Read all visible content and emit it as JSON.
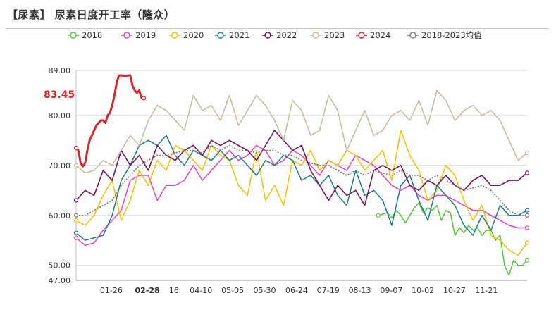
{
  "title": "【尿素】 尿素日度开工率（隆众）",
  "chart_data": {
    "type": "line",
    "title": "【尿素】 尿素日度开工率（隆众）",
    "xlabel": "",
    "ylabel": "",
    "ylim": [
      47,
      89
    ],
    "yticks": [
      "89.00",
      "80.00",
      "70.00",
      "60.00",
      "50.00",
      "47.00"
    ],
    "ytick_values": [
      89,
      80,
      70,
      60,
      50,
      47
    ],
    "xlim": [
      0,
      1
    ],
    "xticks": [
      {
        "label": "01-26",
        "pos": 0.078,
        "highlight": false
      },
      {
        "label": "02-28",
        "pos": 0.158,
        "highlight": true
      },
      {
        "label": "16",
        "pos": 0.217,
        "highlight": false
      },
      {
        "label": "04-10",
        "pos": 0.277,
        "highlight": false
      },
      {
        "label": "05-05",
        "pos": 0.347,
        "highlight": false
      },
      {
        "label": "05-30",
        "pos": 0.418,
        "highlight": false
      },
      {
        "label": "06-24",
        "pos": 0.489,
        "highlight": false
      },
      {
        "label": "07-19",
        "pos": 0.559,
        "highlight": false
      },
      {
        "label": "08-13",
        "pos": 0.629,
        "highlight": false
      },
      {
        "label": "09-07",
        "pos": 0.699,
        "highlight": false
      },
      {
        "label": "10-02",
        "pos": 0.769,
        "highlight": false
      },
      {
        "label": "10-27",
        "pos": 0.839,
        "highlight": false
      },
      {
        "label": "11-21",
        "pos": 0.91,
        "highlight": false
      }
    ],
    "grid": true,
    "legend_position": "top",
    "annotation": {
      "text": "83.45",
      "color": "#d9262c"
    },
    "series": [
      {
        "name": "2018",
        "color": "#52c43a",
        "width": 1.5,
        "marker": "circle",
        "x": [
          0.67,
          0.69,
          0.7,
          0.71,
          0.72,
          0.73,
          0.74,
          0.75,
          0.76,
          0.77,
          0.78,
          0.79,
          0.8,
          0.81,
          0.82,
          0.83,
          0.84,
          0.85,
          0.86,
          0.87,
          0.88,
          0.89,
          0.9,
          0.91,
          0.92,
          0.93,
          0.94,
          0.95,
          0.96,
          0.97,
          0.98,
          0.99,
          1.0
        ],
        "y": [
          60,
          60.5,
          59.5,
          61,
          60,
          58.5,
          60,
          61.5,
          62.5,
          60.5,
          61.5,
          61,
          62,
          59,
          61,
          60.5,
          56,
          57.5,
          56.5,
          58,
          57,
          57.5,
          56,
          57,
          57,
          55,
          56,
          50,
          48,
          51,
          50,
          50,
          51
        ]
      },
      {
        "name": "2019",
        "color": "#e83fbf",
        "width": 1.5,
        "marker": "circle",
        "x": [
          0.0,
          0.02,
          0.04,
          0.06,
          0.08,
          0.1,
          0.12,
          0.14,
          0.16,
          0.18,
          0.2,
          0.22,
          0.24,
          0.26,
          0.28,
          0.3,
          0.32,
          0.34,
          0.36,
          0.38,
          0.4,
          0.42,
          0.44,
          0.46,
          0.48,
          0.5,
          0.52,
          0.54,
          0.56,
          0.58,
          0.6,
          0.62,
          0.64,
          0.66,
          0.68,
          0.7,
          0.72,
          0.74,
          0.76,
          0.78,
          0.8,
          0.82,
          0.84,
          0.86,
          0.88,
          0.9,
          0.92,
          0.94,
          0.96,
          0.98,
          1.0
        ],
        "y": [
          55.5,
          54,
          54.5,
          57,
          59,
          61,
          67,
          68,
          68,
          63,
          66,
          66,
          67,
          70,
          67,
          69,
          71,
          73,
          71,
          72,
          74,
          73,
          70,
          71,
          73,
          72,
          70,
          68,
          71,
          70,
          69,
          72,
          71,
          70,
          68,
          66,
          65,
          66,
          64,
          63,
          64,
          64,
          63,
          62,
          61,
          61,
          60,
          59,
          58,
          57.5,
          57.5
        ]
      },
      {
        "name": "2020",
        "color": "#f5c000",
        "width": 1.5,
        "marker": "circle",
        "x": [
          0.0,
          0.02,
          0.04,
          0.06,
          0.08,
          0.1,
          0.12,
          0.14,
          0.16,
          0.18,
          0.2,
          0.22,
          0.24,
          0.26,
          0.28,
          0.3,
          0.32,
          0.34,
          0.36,
          0.38,
          0.4,
          0.42,
          0.44,
          0.46,
          0.48,
          0.5,
          0.52,
          0.54,
          0.56,
          0.58,
          0.6,
          0.62,
          0.64,
          0.66,
          0.68,
          0.7,
          0.72,
          0.74,
          0.76,
          0.78,
          0.8,
          0.82,
          0.84,
          0.86,
          0.88,
          0.9,
          0.92,
          0.94,
          0.96,
          0.98,
          1.0
        ],
        "y": [
          59,
          58,
          60,
          64,
          67,
          59,
          63,
          69,
          66,
          71,
          69,
          74,
          73,
          71,
          69,
          74,
          72,
          71,
          66,
          64,
          73,
          63,
          66,
          62,
          71,
          70,
          73,
          69,
          71,
          70,
          73,
          72,
          69,
          71,
          73,
          67,
          77,
          72,
          69,
          63,
          65,
          70,
          68,
          63,
          59,
          62,
          56,
          55,
          53,
          52,
          54.5
        ]
      },
      {
        "name": "2021",
        "color": "#1e7a86",
        "width": 1.5,
        "marker": "circle",
        "x": [
          0.0,
          0.02,
          0.04,
          0.06,
          0.08,
          0.1,
          0.12,
          0.14,
          0.16,
          0.18,
          0.2,
          0.22,
          0.24,
          0.26,
          0.28,
          0.3,
          0.32,
          0.34,
          0.36,
          0.38,
          0.4,
          0.42,
          0.44,
          0.46,
          0.48,
          0.5,
          0.52,
          0.54,
          0.56,
          0.58,
          0.6,
          0.62,
          0.64,
          0.66,
          0.68,
          0.7,
          0.72,
          0.74,
          0.76,
          0.78,
          0.8,
          0.82,
          0.84,
          0.86,
          0.88,
          0.9,
          0.92,
          0.94,
          0.96,
          0.98,
          1.0
        ],
        "y": [
          56.5,
          55,
          55.5,
          56,
          60,
          67,
          70,
          74,
          75,
          74,
          76,
          72,
          70,
          73,
          72,
          71,
          73,
          71,
          72,
          70,
          68,
          71,
          70,
          72,
          71,
          67,
          68,
          66,
          68,
          64,
          62,
          69,
          64,
          65,
          63,
          58,
          66,
          68,
          63,
          59,
          66,
          64,
          62,
          58,
          56,
          60,
          57,
          62,
          60,
          60,
          61
        ]
      },
      {
        "name": "2022",
        "color": "#76135a",
        "width": 1.6,
        "marker": "circle",
        "x": [
          0.0,
          0.02,
          0.04,
          0.06,
          0.08,
          0.1,
          0.12,
          0.14,
          0.16,
          0.18,
          0.2,
          0.22,
          0.24,
          0.26,
          0.28,
          0.3,
          0.32,
          0.34,
          0.36,
          0.38,
          0.4,
          0.42,
          0.44,
          0.46,
          0.48,
          0.5,
          0.52,
          0.54,
          0.56,
          0.58,
          0.6,
          0.62,
          0.64,
          0.66,
          0.68,
          0.7,
          0.72,
          0.74,
          0.76,
          0.78,
          0.8,
          0.82,
          0.84,
          0.86,
          0.88,
          0.9,
          0.92,
          0.94,
          0.96,
          0.98,
          1.0
        ],
        "y": [
          63,
          65,
          64,
          69,
          67,
          73,
          70,
          72,
          69,
          74,
          72,
          71,
          73,
          74,
          72,
          75,
          74,
          75,
          74,
          73,
          71,
          74,
          77,
          75,
          73,
          74,
          69,
          66,
          63,
          66,
          64,
          65,
          62,
          69,
          70,
          69,
          70,
          66,
          65,
          67,
          66,
          68,
          66,
          65,
          67,
          68,
          66,
          66,
          67,
          67,
          68.5
        ]
      },
      {
        "name": "2023",
        "color": "#c8b8a0",
        "width": 1.5,
        "marker": "circle",
        "x": [
          0.0,
          0.02,
          0.04,
          0.06,
          0.08,
          0.1,
          0.12,
          0.14,
          0.16,
          0.18,
          0.2,
          0.22,
          0.24,
          0.26,
          0.28,
          0.3,
          0.32,
          0.34,
          0.36,
          0.38,
          0.4,
          0.42,
          0.44,
          0.46,
          0.48,
          0.5,
          0.52,
          0.54,
          0.56,
          0.58,
          0.6,
          0.62,
          0.64,
          0.66,
          0.68,
          0.7,
          0.72,
          0.74,
          0.76,
          0.78,
          0.8,
          0.82,
          0.84,
          0.86,
          0.88,
          0.9,
          0.92,
          0.94,
          0.96,
          0.98,
          1.0
        ],
        "y": [
          70,
          68.5,
          69,
          71,
          70,
          73,
          76,
          74,
          79,
          82,
          81,
          79,
          77,
          84,
          81,
          82,
          79,
          84,
          78,
          81,
          84,
          82,
          79,
          75,
          83,
          81,
          76,
          77,
          84,
          81,
          73,
          77,
          81,
          76,
          77,
          80,
          81,
          79,
          83,
          78,
          85,
          83,
          79,
          81,
          82,
          80,
          81,
          79,
          75,
          71,
          72.5
        ]
      },
      {
        "name": "2024",
        "color": "#d9262c",
        "width": 3,
        "marker": "circle",
        "x": [
          0.0,
          0.005,
          0.01,
          0.015,
          0.02,
          0.025,
          0.03,
          0.035,
          0.04,
          0.045,
          0.05,
          0.055,
          0.06,
          0.065,
          0.07,
          0.075,
          0.08,
          0.085,
          0.09,
          0.095,
          0.1,
          0.105,
          0.11,
          0.115,
          0.12,
          0.125,
          0.13,
          0.135,
          0.14,
          0.145,
          0.15
        ],
        "y": [
          73.5,
          73,
          70.5,
          69.8,
          70.5,
          73,
          75,
          76,
          77,
          78,
          78.5,
          79,
          79,
          78.5,
          80,
          80.5,
          82,
          84,
          86.5,
          88,
          88,
          88,
          87.8,
          88,
          88,
          86,
          85,
          84.5,
          85,
          83.5,
          83.45
        ]
      },
      {
        "name": "2018-2023均值",
        "color": "#777777",
        "width": 1.6,
        "marker": "circle",
        "dashed": true,
        "x": [
          0.0,
          0.02,
          0.04,
          0.06,
          0.08,
          0.1,
          0.12,
          0.14,
          0.16,
          0.18,
          0.2,
          0.22,
          0.24,
          0.26,
          0.28,
          0.3,
          0.32,
          0.34,
          0.36,
          0.38,
          0.4,
          0.42,
          0.44,
          0.46,
          0.48,
          0.5,
          0.52,
          0.54,
          0.56,
          0.58,
          0.6,
          0.62,
          0.64,
          0.66,
          0.68,
          0.7,
          0.72,
          0.74,
          0.76,
          0.78,
          0.8,
          0.82,
          0.84,
          0.86,
          0.88,
          0.9,
          0.92,
          0.94,
          0.96,
          0.98,
          1.0
        ],
        "y": [
          60,
          60,
          61,
          62,
          63,
          66,
          68,
          70,
          71,
          72,
          72,
          72.5,
          73,
          73,
          72.5,
          74,
          73,
          74,
          73,
          73,
          72.5,
          73,
          73,
          72,
          72,
          71,
          70.5,
          70,
          70,
          69,
          68,
          69,
          68,
          69,
          68.5,
          68,
          69,
          68,
          68,
          67,
          68,
          67,
          66,
          65,
          65.5,
          66,
          65,
          63,
          61,
          60,
          60
        ]
      }
    ]
  }
}
